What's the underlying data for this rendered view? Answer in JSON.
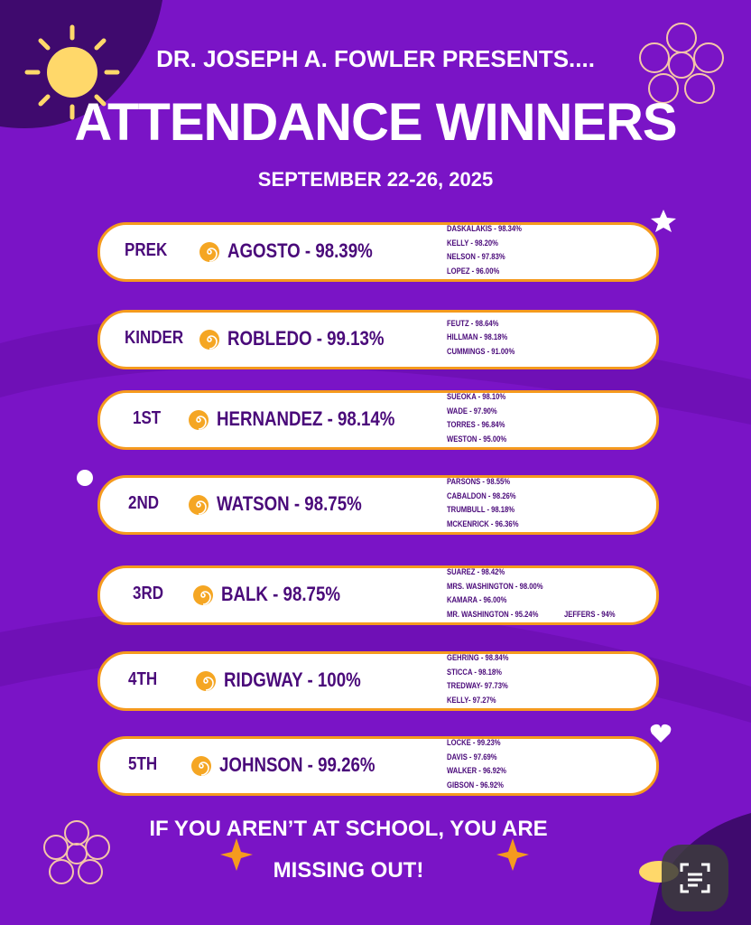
{
  "header": {
    "presenter": "DR. JOSEPH A. FOWLER PRESENTS....",
    "title": "ATTENDANCE WINNERS",
    "date": "SEPTEMBER 22-26, 2025"
  },
  "rows": [
    {
      "grade": "PREK",
      "winner": "AGOSTO - 98.39%",
      "others": [
        "DASKALAKIS - 98.34%",
        "KELLY - 98.20%",
        "NELSON - 97.83%",
        "LOPEZ - 96.00%"
      ]
    },
    {
      "grade": "KINDER",
      "winner": "ROBLEDO - 99.13%",
      "others": [
        "FEUTZ - 98.64%",
        "HILLMAN - 98.18%",
        "CUMMINGS - 91.00%"
      ]
    },
    {
      "grade": "1ST",
      "winner": "HERNANDEZ - 98.14%",
      "others": [
        "SUEOKA - 98.10%",
        "WADE - 97.90%",
        "TORRES - 96.84%",
        "WESTON - 95.00%"
      ]
    },
    {
      "grade": "2ND",
      "winner": "WATSON - 98.75%",
      "others": [
        "PARSONS - 98.55%",
        "CABALDON - 98.26%",
        "TRUMBULL - 98.18%",
        "MCKENRICK - 96.36%"
      ]
    },
    {
      "grade": "3RD",
      "winner": "BALK - 98.75%",
      "others": [
        "SUAREZ - 98.42%",
        "MRS. WASHINGTON - 98.00%",
        "KAMARA - 96.00%",
        "MR. WASHINGTON - 95.24%",
        "JEFFERS - 94%"
      ]
    },
    {
      "grade": "4TH",
      "winner": "RIDGWAY - 100%",
      "others": [
        "GEHRING - 98.84%",
        "STICCA - 98.18%",
        "TREDWAY- 97.73%",
        "KELLY- 97.27%"
      ]
    },
    {
      "grade": "5TH",
      "winner": "JOHNSON - 99.26%",
      "others": [
        "LOCKE - 99.23%",
        "DAVIS - 97.69%",
        "WALKER - 96.92%",
        "GIBSON - 96.92%"
      ]
    }
  ],
  "footer": {
    "line1": "IF YOU AREN’T AT SCHOOL, YOU ARE",
    "line2": "MISSING OUT!"
  }
}
